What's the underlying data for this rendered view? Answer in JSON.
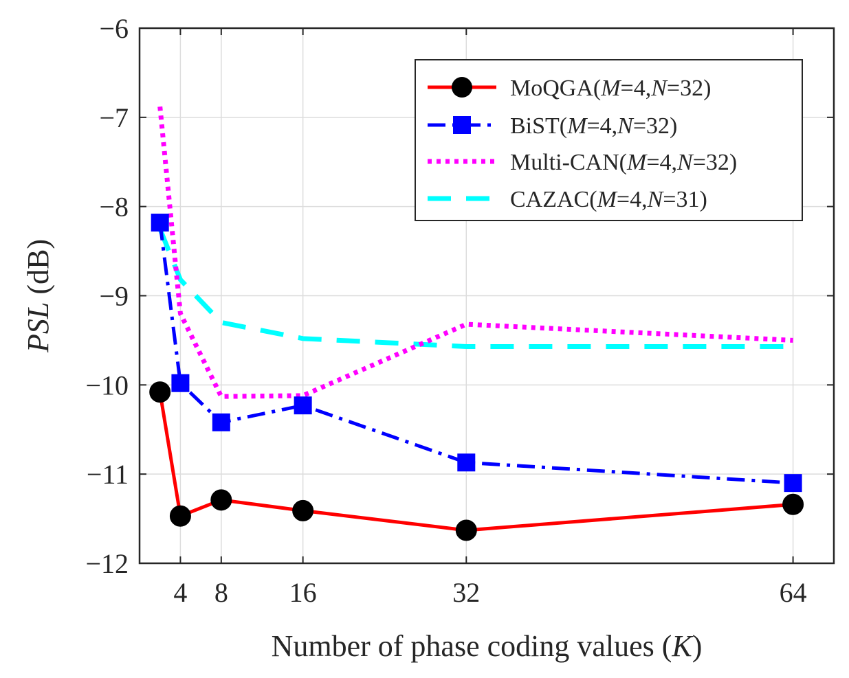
{
  "chart_data": {
    "type": "line",
    "xlabel": "Number of phase coding values (",
    "xlabel_var": "K",
    "xlabel_end": ")",
    "ylabel_var": "PSL",
    "ylabel_unit": " (dB)",
    "xlim": [
      0,
      68
    ],
    "ylim": [
      -12,
      -6
    ],
    "xticks": [
      4,
      8,
      16,
      32,
      64
    ],
    "yticks": [
      -12,
      -11,
      -10,
      -9,
      -8,
      -7,
      -6
    ],
    "ytick_labels": [
      "−12",
      "−11",
      "−10",
      "−9",
      "−8",
      "−7",
      "−6"
    ],
    "grid": true,
    "legend_position": "top-right",
    "series": [
      {
        "name": "MoQGA",
        "params": "(M=4,N=32)",
        "p1": "M",
        "p1v": "=4,",
        "p2": "N",
        "p2v": "=32)",
        "color": "#ff0000",
        "style": "solid",
        "marker": "circle",
        "marker_color": "#000000",
        "x": [
          2,
          4,
          8,
          16,
          32,
          64
        ],
        "y": [
          -10.08,
          -11.47,
          -11.29,
          -11.41,
          -11.63,
          -11.34
        ]
      },
      {
        "name": "BiST",
        "params": "(M=4,N=32)",
        "p1": "M",
        "p1v": "=4,",
        "p2": "N",
        "p2v": "=32)",
        "color": "#0000ff",
        "style": "dashdot",
        "marker": "square",
        "marker_color": "#0000ff",
        "x": [
          2,
          4,
          8,
          16,
          32,
          64
        ],
        "y": [
          -8.18,
          -9.98,
          -10.42,
          -10.23,
          -10.87,
          -11.1
        ]
      },
      {
        "name": "Multi-CAN",
        "params": "(M=4,N=32)",
        "p1": "M",
        "p1v": "=4,",
        "p2": "N",
        "p2v": "=32)",
        "color": "#ff00ff",
        "style": "dotted",
        "marker": "none",
        "marker_color": "#ff00ff",
        "x": [
          2,
          4,
          8,
          16,
          32,
          64
        ],
        "y": [
          -6.88,
          -9.2,
          -10.13,
          -10.12,
          -9.32,
          -9.5
        ]
      },
      {
        "name": "CAZAC",
        "params": "(M=4,N=31)",
        "p1": "M",
        "p1v": "=4,",
        "p2": "N",
        "p2v": "=31)",
        "color": "#00ffff",
        "style": "dashed",
        "marker": "none",
        "marker_color": "#00ffff",
        "x": [
          2,
          4,
          8,
          16,
          32,
          64
        ],
        "y": [
          -8.25,
          -8.82,
          -9.3,
          -9.48,
          -9.57,
          -9.57
        ]
      }
    ]
  }
}
